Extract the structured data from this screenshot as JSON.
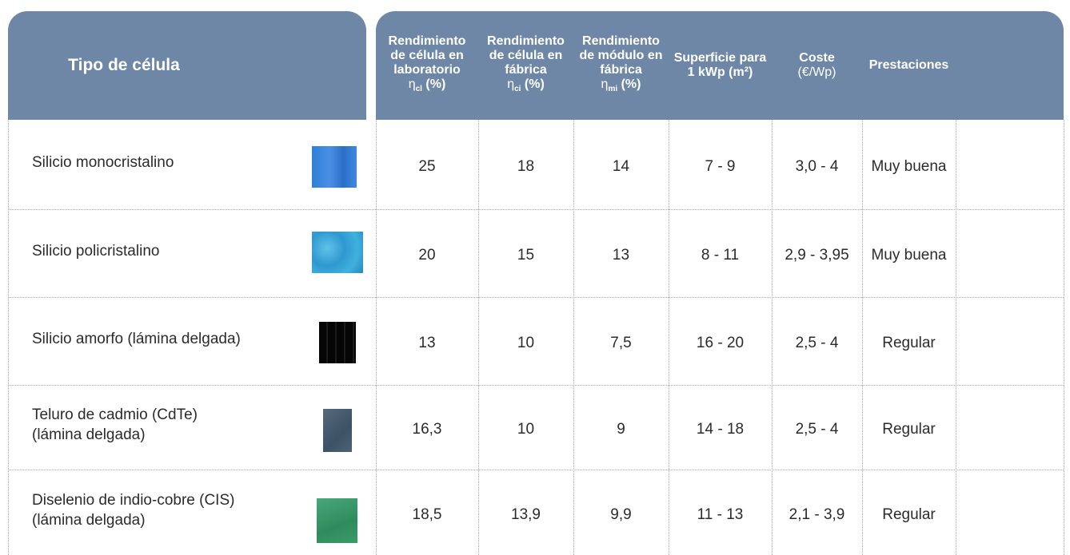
{
  "header": {
    "title": "Tipo de célula",
    "columns": [
      {
        "text": "Rendimiento de célula en laboratorio",
        "symbol": "η",
        "subscript": "cl",
        "unit": "(%)"
      },
      {
        "text": "Rendimiento de célula en fábrica",
        "symbol": "η",
        "subscript": "ci",
        "unit": "(%)"
      },
      {
        "text": "Rendimiento de módulo en fábrica",
        "symbol": "η",
        "subscript": "mi",
        "unit": "(%)"
      },
      {
        "text": "Superficie para 1 kWp (m²)"
      },
      {
        "text": "Coste",
        "unit": "(€/Wp)"
      },
      {
        "text": "Prestaciones"
      }
    ]
  },
  "table": {
    "rows": [
      {
        "name": [
          "Silicio monocristalino"
        ],
        "values": [
          "25",
          "18",
          "14",
          "7 - 9",
          "3,0 - 4",
          "Muy buena"
        ]
      },
      {
        "name": [
          "Silicio policristalino"
        ],
        "values": [
          "20",
          "15",
          "13",
          "8 - 11",
          "2,9 - 3,95",
          "Muy buena"
        ]
      },
      {
        "name": [
          "Silicio amorfo (lámina delgada)"
        ],
        "values": [
          "13",
          "10",
          "7,5",
          "16 - 20",
          "2,5 - 4",
          "Regular"
        ]
      },
      {
        "name": [
          "Teluro de cadmio (CdTe)",
          "(lámina delgada)"
        ],
        "values": [
          "16,3",
          "10",
          "9",
          "14 - 18",
          "2,5 - 4",
          "Regular"
        ]
      },
      {
        "name": [
          "Diselenio de indio-cobre (CIS)",
          "(lámina delgada)"
        ],
        "values": [
          "18,5",
          "13,9",
          "9,9",
          "11 - 13",
          "2,1 - 3,9",
          "Regular"
        ]
      }
    ]
  }
}
